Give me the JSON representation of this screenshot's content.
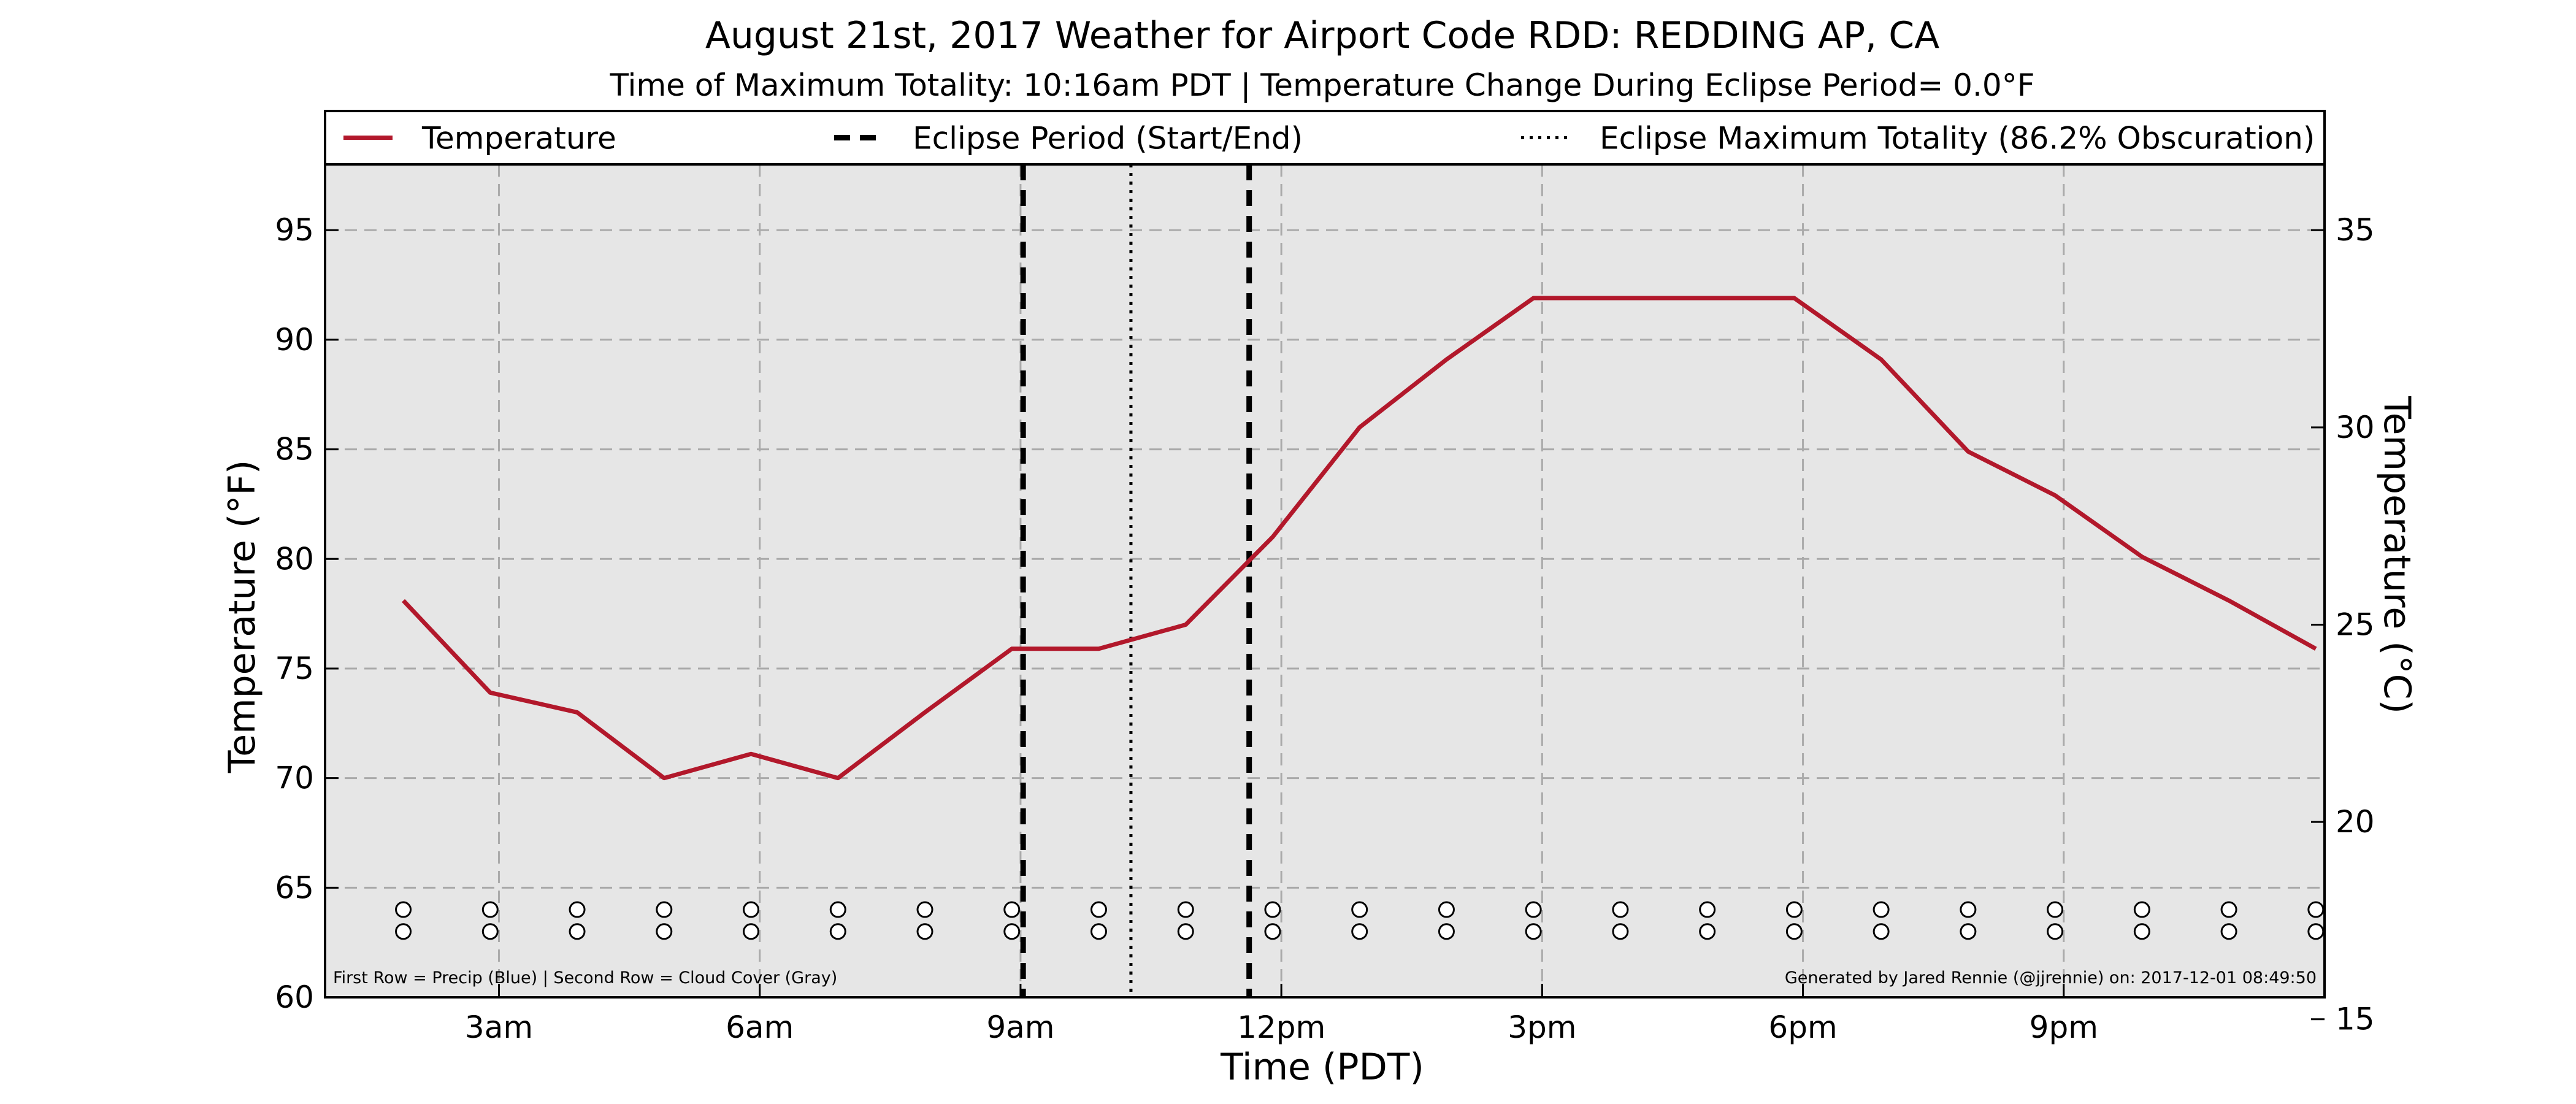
{
  "chart_data": {
    "type": "line",
    "title": "August 21st, 2017 Weather for Airport Code RDD: REDDING AP, CA",
    "subtitle": "Time of Maximum Totality: 10:16am PDT | Temperature Change During Eclipse Period= 0.0°F",
    "xlabel": "Time (PDT)",
    "ylabel": "Temperature (°F)",
    "ylabel_right": "Temperature (°C)",
    "xlim": [
      1,
      24
    ],
    "ylim": [
      60,
      98
    ],
    "ylim_right_celsius": [
      15.56,
      36.67
    ],
    "x_ticks": [
      {
        "value": 3,
        "label": "3am"
      },
      {
        "value": 6,
        "label": "6am"
      },
      {
        "value": 9,
        "label": "9am"
      },
      {
        "value": 12,
        "label": "12pm"
      },
      {
        "value": 15,
        "label": "3pm"
      },
      {
        "value": 18,
        "label": "6pm"
      },
      {
        "value": 21,
        "label": "9pm"
      }
    ],
    "y_ticks": [
      60,
      65,
      70,
      75,
      80,
      85,
      90,
      95
    ],
    "y_ticks_right": [
      15,
      20,
      25,
      30,
      35
    ],
    "grid": true,
    "legend_position": "top",
    "series": [
      {
        "name": "Temperature",
        "color": "#b2182b",
        "x": [
          1.9,
          2.9,
          3.9,
          4.9,
          5.9,
          6.9,
          7.9,
          8.9,
          9.9,
          10.9,
          11.9,
          12.9,
          13.9,
          14.9,
          15.9,
          16.9,
          17.9,
          18.9,
          19.9,
          20.9,
          21.9,
          22.9,
          23.9
        ],
        "y": [
          78.1,
          73.9,
          73.0,
          70.0,
          71.1,
          70.0,
          73.0,
          75.9,
          75.9,
          77.0,
          81.0,
          86.0,
          89.1,
          91.9,
          91.9,
          91.9,
          91.9,
          89.1,
          84.9,
          82.9,
          80.1,
          78.1,
          75.9
        ]
      }
    ],
    "eclipse_period": {
      "label": "Eclipse Period (Start/End)",
      "start": 9.03,
      "end": 11.63
    },
    "eclipse_max": {
      "label": "Eclipse Maximum Totality (86.2% Obscuration)",
      "x": 10.27
    },
    "obs_markers": {
      "x": [
        1.9,
        2.9,
        3.9,
        4.9,
        5.9,
        6.9,
        7.9,
        8.9,
        9.9,
        10.9,
        11.9,
        12.9,
        13.9,
        14.9,
        15.9,
        16.9,
        17.9,
        18.9,
        19.9,
        20.9,
        21.9,
        22.9,
        23.9
      ],
      "row1_y": 64,
      "row2_y": 63
    },
    "annotations": {
      "bottom_left": "First Row = Precip (Blue) | Second Row = Cloud Cover (Gray)",
      "bottom_right": "Generated by Jared Rennie (@jjrennie) on: 2017-12-01 08:49:50"
    },
    "colors": {
      "plot_background": "#e6e6e6",
      "temperature_line": "#b2182b",
      "eclipse_lines": "#000000",
      "grid": "#aaaaaa"
    }
  }
}
